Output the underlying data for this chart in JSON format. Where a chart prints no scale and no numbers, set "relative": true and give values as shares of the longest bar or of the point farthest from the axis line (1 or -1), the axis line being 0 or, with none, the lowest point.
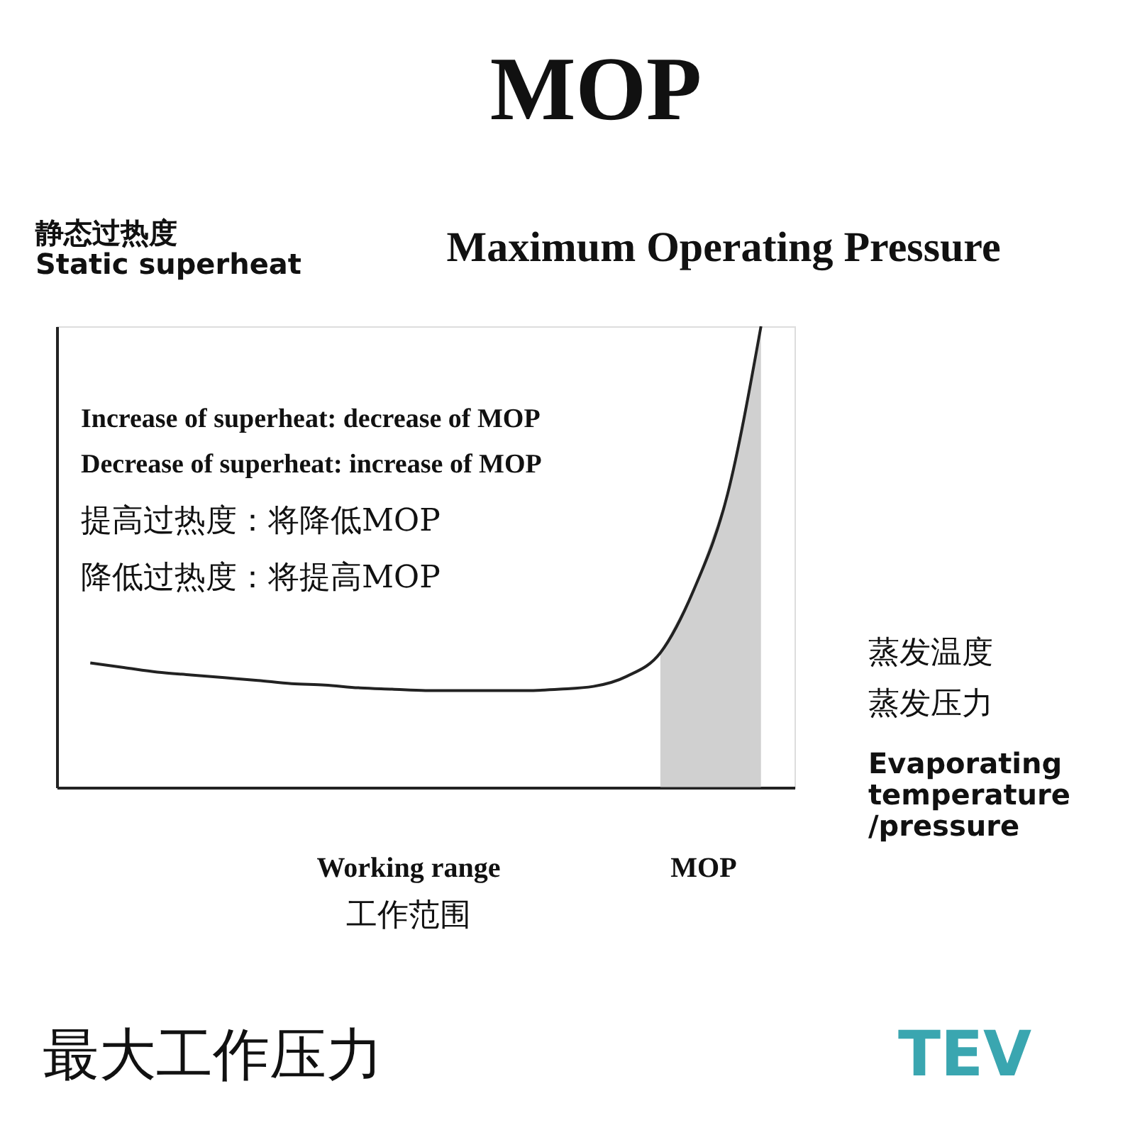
{
  "chart_data": {
    "type": "line",
    "relative": true,
    "title": "MOP",
    "subtitle": "Maximum Operating Pressure",
    "ylabel": "静态过热度\nStatic superheat",
    "xlabel": "Evaporating\ntemperature\n/pressure",
    "categories": [
      null,
      null,
      null,
      null,
      null,
      null,
      null,
      null,
      null,
      null,
      null,
      null,
      null,
      null,
      null,
      null,
      null,
      null,
      null,
      null,
      null
    ],
    "series": [
      {
        "color": "#222222",
        "values": [
          0.27,
          0.26,
          0.25,
          0.244,
          0.238,
          0.232,
          0.225,
          0.222,
          0.216,
          0.213,
          0.21,
          0.21,
          0.21,
          0.21,
          0.213,
          0.219,
          0.241,
          0.292,
          0.429,
          0.635,
          1
        ]
      },
      {
        "type": "area",
        "color": "#b0b0b0",
        "values": [
          null,
          null,
          null,
          null,
          null,
          null,
          null,
          null,
          null,
          null,
          null,
          null,
          null,
          null,
          null,
          null,
          null,
          0.292,
          0.429,
          0.635,
          1
        ]
      }
    ],
    "annotations": [
      "Increase of superheat: decrease of MOP",
      "Decrease of superheat: increase of MOP",
      "提高过热度：将降低MOP",
      "降低过热度：将提高MOP",
      "Working range",
      "工作范围",
      "MOP",
      "最大工作压力",
      "TEV",
      "蒸发温度",
      "蒸发压力"
    ],
    "grid": false
  }
}
